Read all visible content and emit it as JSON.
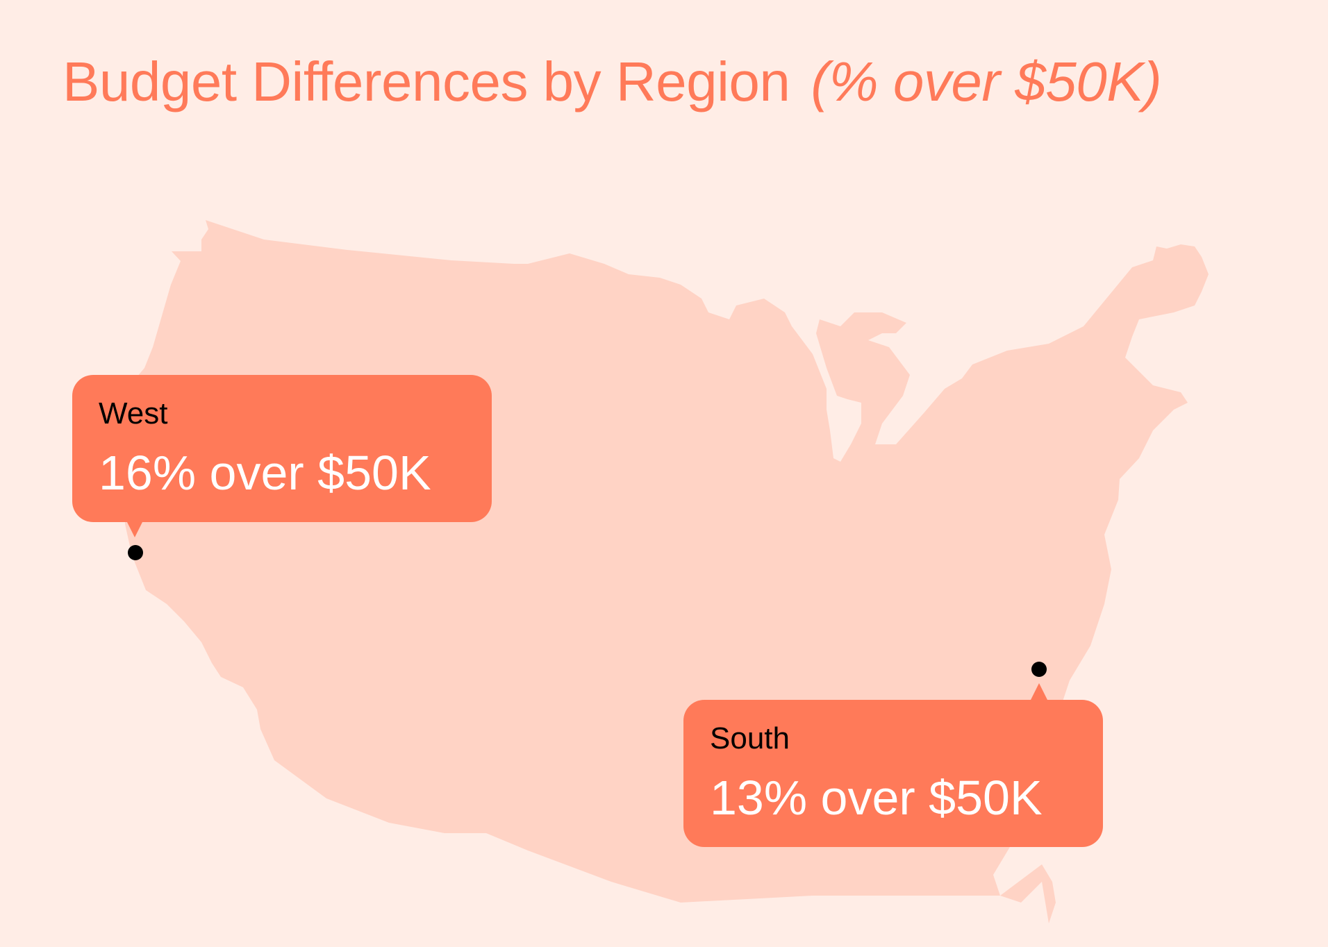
{
  "title": "Budget Differences by Region",
  "subtitle": "(% over $50K)",
  "colors": {
    "background": "#FFEDE6",
    "map_fill": "#FFD3C5",
    "accent": "#FF7A59",
    "title_color": "#FF7A59"
  },
  "callouts": [
    {
      "region": "West",
      "value": "16% over $50K"
    },
    {
      "region": "South",
      "value": "13% over $50K"
    }
  ]
}
